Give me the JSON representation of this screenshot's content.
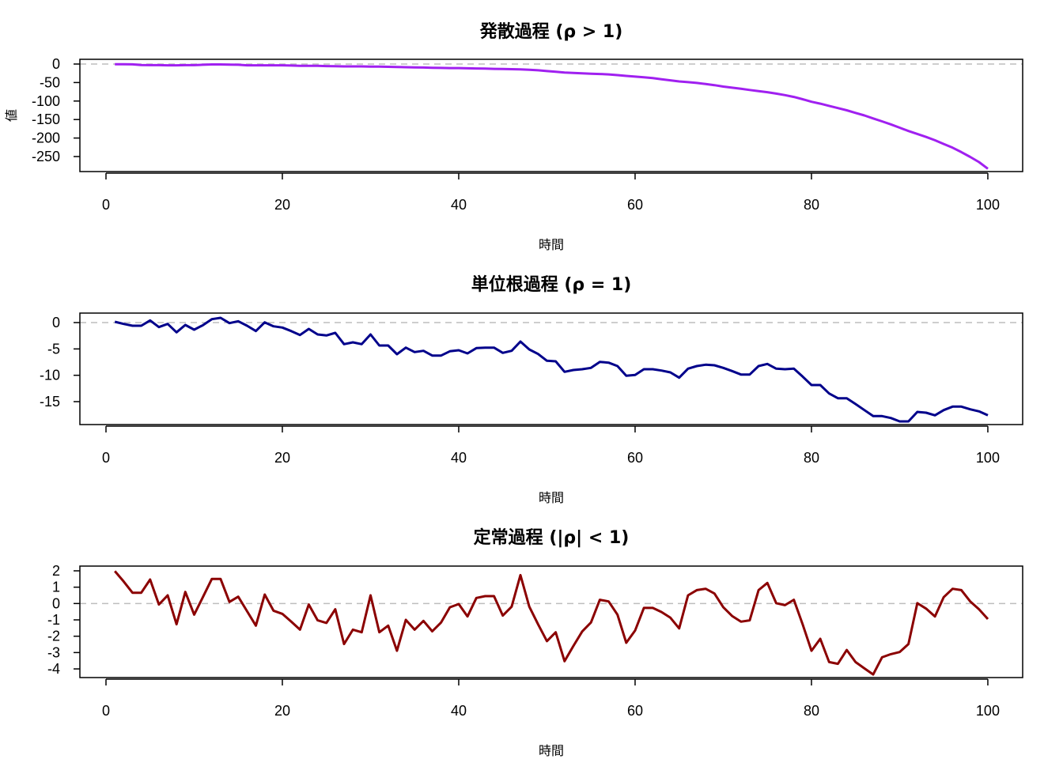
{
  "chart_data": [
    {
      "type": "line",
      "title": "発散過程 (ρ > 1)",
      "xlabel": "時間",
      "ylabel": "値",
      "color": "#A020F0",
      "xlim": [
        -2.96,
        103.95
      ],
      "ylim": [
        -290.6,
        12.8
      ],
      "xticks": [
        0,
        20,
        40,
        60,
        80,
        100
      ],
      "yticks": [
        0,
        -50,
        -100,
        -150,
        -200,
        -250
      ],
      "reference_line": 0,
      "x": "1..100",
      "values": [
        -0.5,
        -0.5,
        -0.8,
        -2.5,
        -3,
        -3,
        -3.5,
        -3.5,
        -3,
        -3,
        -2,
        -1,
        -1,
        -1.5,
        -2,
        -3.5,
        -3.5,
        -3.5,
        -3.5,
        -3.5,
        -4,
        -5,
        -5,
        -5,
        -5.5,
        -6,
        -6.5,
        -6.5,
        -6.5,
        -7,
        -7,
        -7.5,
        -8,
        -8.5,
        -9,
        -9.5,
        -10,
        -10.5,
        -11,
        -11,
        -11.5,
        -12,
        -12.5,
        -13,
        -13.5,
        -14,
        -14.5,
        -15.5,
        -17,
        -19,
        -21,
        -23,
        -24,
        -25,
        -26,
        -27,
        -28,
        -30,
        -32,
        -34,
        -36,
        -38,
        -41,
        -44,
        -47,
        -49,
        -51,
        -54,
        -57,
        -61,
        -64,
        -67,
        -70,
        -73,
        -76,
        -80,
        -84,
        -89,
        -95,
        -102,
        -107,
        -113,
        -119,
        -125,
        -132,
        -139,
        -147,
        -155,
        -163,
        -172,
        -181,
        -189,
        -197,
        -206,
        -216,
        -226,
        -238,
        -251,
        -265,
        -283
      ]
    },
    {
      "type": "line",
      "title": "単位根過程 (ρ = 1)",
      "xlabel": "時間",
      "ylabel": "",
      "color": "#00008B",
      "xlim": [
        -2.96,
        103.95
      ],
      "ylim": [
        -19.35,
        1.8
      ],
      "xticks": [
        0,
        20,
        40,
        60,
        80,
        100
      ],
      "yticks": [
        0,
        -5,
        -10,
        -15
      ],
      "reference_line": 0,
      "x": "1..100",
      "values": [
        0.15,
        -0.25,
        -0.6,
        -0.6,
        0.4,
        -0.85,
        -0.25,
        -1.85,
        -0.45,
        -1.35,
        -0.5,
        0.65,
        0.9,
        -0.1,
        0.25,
        -0.6,
        -1.6,
        0.05,
        -0.7,
        -0.95,
        -1.6,
        -2.35,
        -1.2,
        -2.25,
        -2.45,
        -1.95,
        -4.1,
        -3.75,
        -4.1,
        -2.25,
        -4.35,
        -4.35,
        -6.0,
        -4.75,
        -5.6,
        -5.35,
        -6.25,
        -6.25,
        -5.45,
        -5.25,
        -5.85,
        -4.85,
        -4.75,
        -4.75,
        -5.75,
        -5.35,
        -3.6,
        -5.1,
        -5.95,
        -7.25,
        -7.35,
        -9.35,
        -9.0,
        -8.85,
        -8.6,
        -7.45,
        -7.6,
        -8.25,
        -10.1,
        -9.95,
        -8.85,
        -8.85,
        -9.1,
        -9.45,
        -10.45,
        -8.75,
        -8.25,
        -8.0,
        -8.1,
        -8.6,
        -9.2,
        -9.85,
        -9.85,
        -8.25,
        -7.85,
        -8.75,
        -8.85,
        -8.75,
        -10.25,
        -11.85,
        -11.85,
        -13.45,
        -14.35,
        -14.35,
        -15.45,
        -16.6,
        -17.75,
        -17.75,
        -18.1,
        -18.75,
        -18.75,
        -16.95,
        -17.1,
        -17.6,
        -16.6,
        -15.95,
        -15.95,
        -16.45,
        -16.85,
        -17.6
      ]
    },
    {
      "type": "line",
      "title": "定常過程 (|ρ| < 1)",
      "xlabel": "時間",
      "ylabel": "",
      "color": "#8B0000",
      "xlim": [
        -2.96,
        103.95
      ],
      "ylim": [
        -4.53,
        2.29
      ],
      "xticks": [
        0,
        20,
        40,
        60,
        80,
        100
      ],
      "yticks": [
        2,
        1,
        0,
        -1,
        -2,
        -3,
        -4
      ],
      "reference_line": 0,
      "x": "1..100",
      "values": [
        1.98,
        1.35,
        0.66,
        0.66,
        1.47,
        -0.06,
        0.5,
        -1.27,
        0.71,
        -0.68,
        0.4,
        1.5,
        1.5,
        0.1,
        0.42,
        -0.47,
        -1.35,
        0.55,
        -0.44,
        -0.63,
        -1.1,
        -1.6,
        -0.06,
        -1.03,
        -1.19,
        -0.35,
        -2.48,
        -1.6,
        -1.76,
        0.5,
        -1.76,
        -1.35,
        -2.89,
        -1.0,
        -1.6,
        -1.06,
        -1.7,
        -1.16,
        -0.23,
        -0.03,
        -0.79,
        0.34,
        0.45,
        0.45,
        -0.74,
        -0.19,
        1.74,
        -0.19,
        -1.27,
        -2.3,
        -1.76,
        -3.53,
        -2.6,
        -1.71,
        -1.16,
        0.23,
        0.13,
        -0.68,
        -2.4,
        -1.65,
        -0.27,
        -0.27,
        -0.52,
        -0.87,
        -1.52,
        0.5,
        0.82,
        0.9,
        0.61,
        -0.23,
        -0.76,
        -1.11,
        -1.03,
        0.82,
        1.26,
        0.02,
        -0.1,
        0.23,
        -1.27,
        -2.89,
        -2.16,
        -3.58,
        -3.69,
        -2.84,
        -3.58,
        -3.97,
        -4.34,
        -3.29,
        -3.1,
        -2.97,
        -2.48,
        0.02,
        -0.31,
        -0.79,
        0.39,
        0.9,
        0.82,
        0.13,
        -0.35,
        -0.95
      ]
    }
  ]
}
